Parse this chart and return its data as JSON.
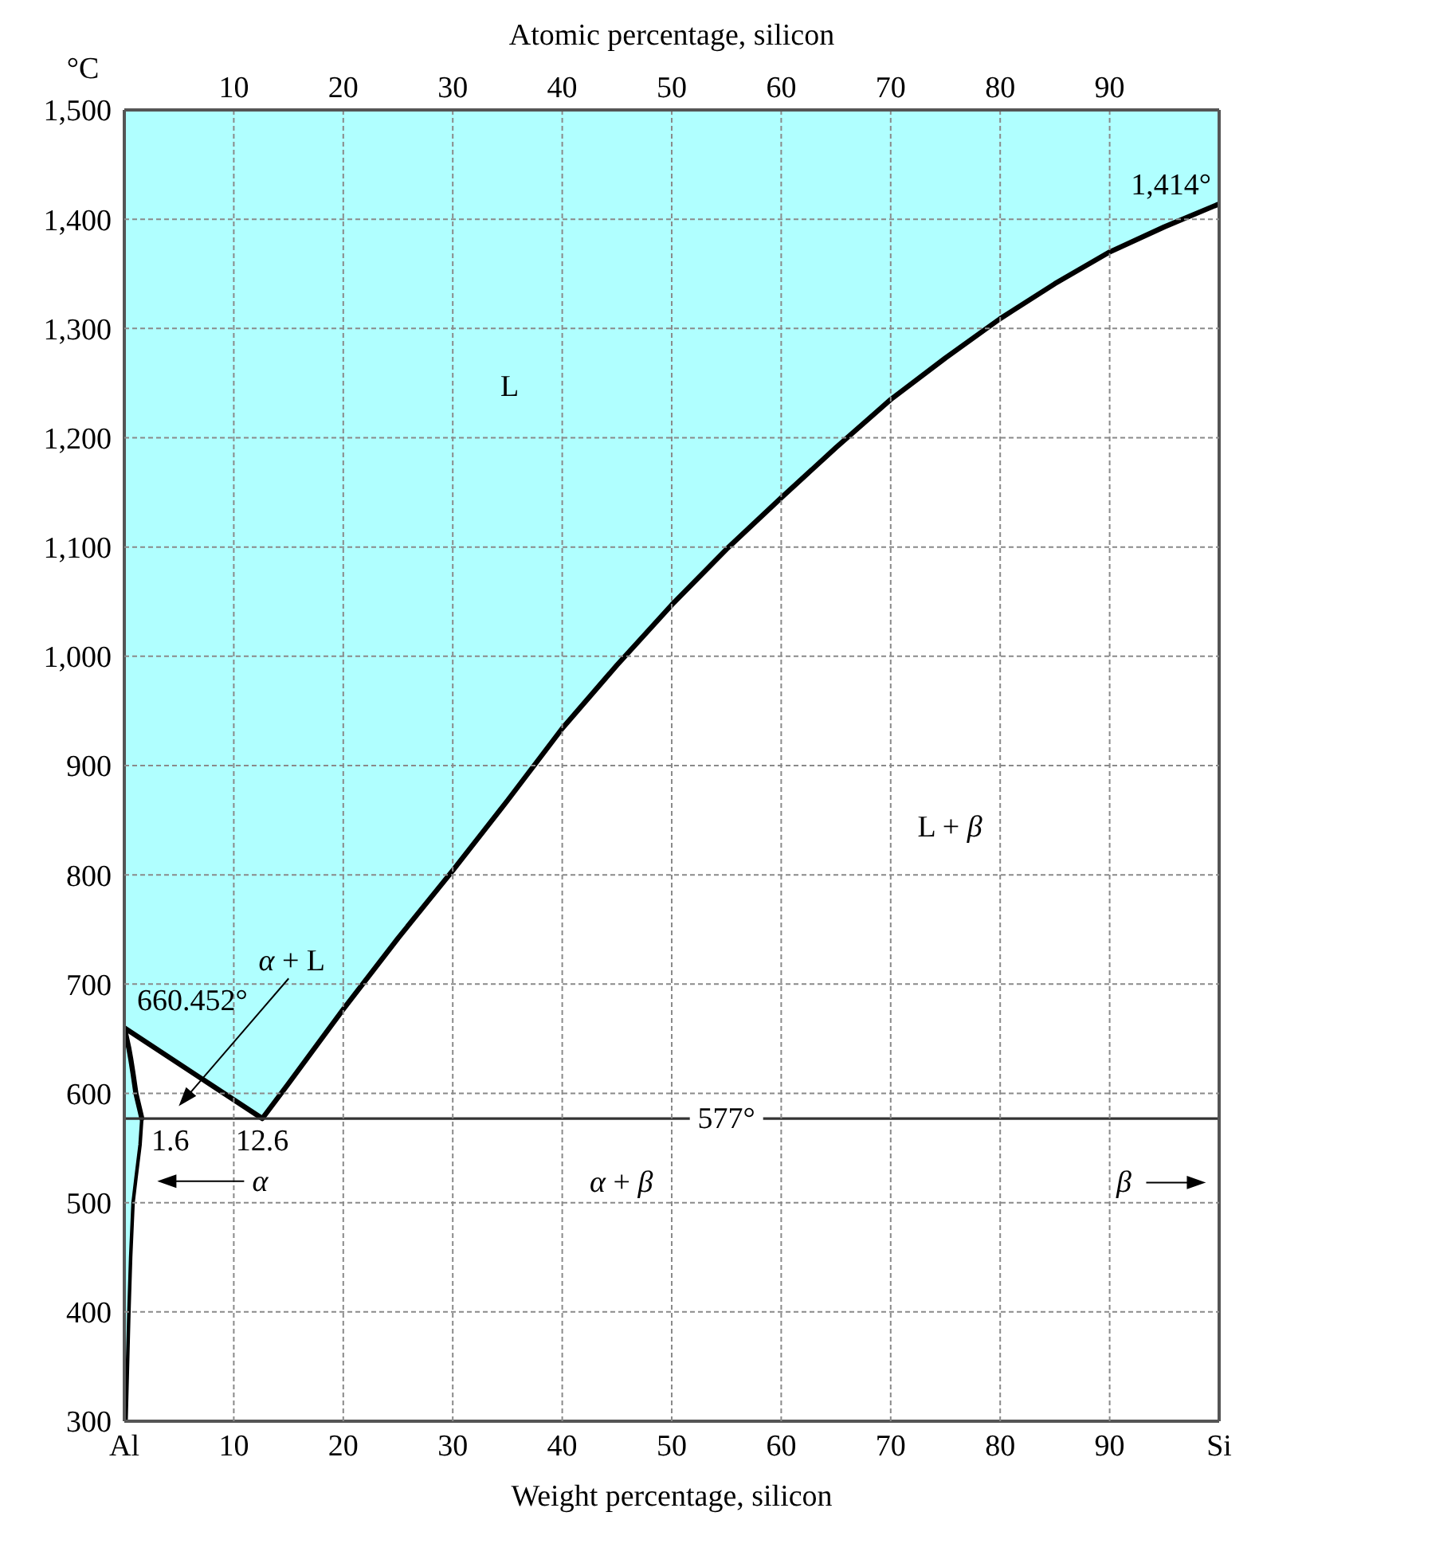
{
  "chart_data": {
    "type": "line",
    "xlabel": "Weight percentage, silicon",
    "x2label": "Atomic percentage, silicon",
    "ylabel": "°C",
    "series": [
      {
        "color": "#000000",
        "x": [
          0,
          12.6,
          15,
          20,
          25,
          30,
          35,
          40,
          45,
          50,
          55,
          60,
          65,
          70,
          75,
          80,
          85,
          90,
          95,
          100
        ],
        "values": [
          660,
          577,
          609,
          677,
          742,
          804,
          868,
          934,
          992,
          1047,
          1098,
          1145,
          1191,
          1235,
          1273,
          1309,
          1341,
          1370,
          1393,
          1414
        ],
        "lower": [
          660,
          577,
          609,
          677,
          742,
          804,
          868,
          934,
          992,
          1047,
          1098,
          1145,
          1191,
          1235,
          1273,
          1309,
          1341,
          1370,
          1393,
          1414
        ],
        "upper": [
          1500,
          1500,
          1500,
          1500,
          1500,
          1500,
          1500,
          1500,
          1500,
          1500,
          1500,
          1500,
          1500,
          1500,
          1500,
          1500,
          1500,
          1500,
          1500,
          1500
        ]
      },
      {
        "color": "#000000",
        "x": [
          0,
          0.16,
          0.42,
          0.58,
          0.8,
          1.06,
          1.44,
          1.6
        ],
        "values": [
          660,
          653,
          641,
          632,
          618,
          600,
          584,
          577
        ],
        "lower": [
          300,
          300,
          400,
          450,
          500,
          522,
          553,
          577
        ],
        "upper": [
          660,
          653,
          641,
          632,
          618,
          600,
          584,
          577
        ]
      },
      {
        "color": "#000000",
        "x": [
          0.16,
          0.42,
          0.58,
          0.8,
          1.06,
          1.44,
          1.6
        ],
        "values": [
          300,
          400,
          450,
          500,
          522,
          553,
          577
        ]
      }
    ],
    "xlim": [
      0,
      100
    ],
    "xticks": [
      {
        "value": 0,
        "label": "Al"
      },
      10,
      20,
      30,
      40,
      50,
      60,
      70,
      80,
      90,
      {
        "value": 100,
        "label": "Si"
      }
    ],
    "x2lim": [
      0,
      100
    ],
    "x2ticks": [
      10,
      20,
      30,
      40,
      50,
      60,
      70,
      80,
      90
    ],
    "ylim": [
      300,
      1500
    ],
    "yticks": [
      300,
      400,
      500,
      600,
      700,
      800,
      900,
      {
        "value": 1000,
        "label": "1,000"
      },
      {
        "value": 1100,
        "label": "1,100"
      },
      {
        "value": 1200,
        "label": "1,200"
      },
      {
        "value": 1300,
        "label": "1,300"
      },
      {
        "value": 1400,
        "label": "1,400"
      },
      {
        "value": 1500,
        "label": "1,500"
      }
    ],
    "grid": true,
    "ref_lines": [
      {
        "axis": "y",
        "value": 577,
        "color": "#333333"
      }
    ],
    "annotations": [
      "L",
      "L + β",
      "α + L",
      {
        "text": "660.452°",
        "x": 0,
        "y": 660.452
      },
      {
        "text": "1,414°",
        "x": 100,
        "y": 1414
      },
      {
        "text": "1.6",
        "x": 1.6,
        "y": 577
      },
      {
        "text": "12.6",
        "x": 12.6,
        "y": 577
      },
      {
        "text": "577°",
        "x": 55,
        "y": 577
      },
      "α + β",
      "α",
      "β"
    ]
  }
}
